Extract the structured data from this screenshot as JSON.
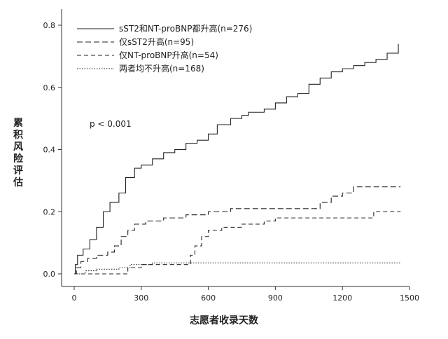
{
  "chart_data": {
    "type": "line",
    "xlabel": "志愿者收录天数",
    "ylabel": "累积风险评估",
    "annotation": "p < 0.001",
    "xlim": [
      0,
      1500
    ],
    "ylim": [
      0,
      0.8
    ],
    "x_ticks": [
      "0",
      "300",
      "600",
      "900",
      "1200",
      "1500"
    ],
    "y_ticks": [
      "0.0",
      "0.2",
      "0.4",
      "0.6",
      "0.8"
    ],
    "grid": false,
    "legend_position": "top-left",
    "series": [
      {
        "name": "sST2和NT-proBNP都升高(n=276)",
        "style": "solid",
        "points": [
          [
            0,
            0
          ],
          [
            5,
            0.03
          ],
          [
            15,
            0.06
          ],
          [
            40,
            0.08
          ],
          [
            70,
            0.11
          ],
          [
            100,
            0.15
          ],
          [
            130,
            0.2
          ],
          [
            160,
            0.23
          ],
          [
            200,
            0.26
          ],
          [
            230,
            0.31
          ],
          [
            270,
            0.34
          ],
          [
            300,
            0.35
          ],
          [
            350,
            0.37
          ],
          [
            400,
            0.39
          ],
          [
            450,
            0.4
          ],
          [
            500,
            0.42
          ],
          [
            550,
            0.43
          ],
          [
            600,
            0.45
          ],
          [
            640,
            0.48
          ],
          [
            700,
            0.5
          ],
          [
            750,
            0.51
          ],
          [
            780,
            0.52
          ],
          [
            850,
            0.53
          ],
          [
            900,
            0.55
          ],
          [
            950,
            0.57
          ],
          [
            1000,
            0.58
          ],
          [
            1050,
            0.61
          ],
          [
            1100,
            0.63
          ],
          [
            1150,
            0.65
          ],
          [
            1200,
            0.66
          ],
          [
            1250,
            0.67
          ],
          [
            1300,
            0.68
          ],
          [
            1350,
            0.69
          ],
          [
            1400,
            0.71
          ],
          [
            1450,
            0.74
          ]
        ]
      },
      {
        "name": "仅sST2升高(n=95)",
        "style": "long-dash",
        "points": [
          [
            0,
            0
          ],
          [
            10,
            0.02
          ],
          [
            30,
            0.04
          ],
          [
            60,
            0.05
          ],
          [
            100,
            0.06
          ],
          [
            150,
            0.07
          ],
          [
            180,
            0.09
          ],
          [
            210,
            0.12
          ],
          [
            240,
            0.14
          ],
          [
            270,
            0.16
          ],
          [
            320,
            0.17
          ],
          [
            400,
            0.18
          ],
          [
            500,
            0.19
          ],
          [
            600,
            0.2
          ],
          [
            700,
            0.21
          ],
          [
            900,
            0.21
          ],
          [
            1100,
            0.23
          ],
          [
            1150,
            0.25
          ],
          [
            1200,
            0.26
          ],
          [
            1250,
            0.28
          ],
          [
            1460,
            0.28
          ]
        ]
      },
      {
        "name": "仅NT-proBNP升高(n=54)",
        "style": "dash",
        "points": [
          [
            0,
            0
          ],
          [
            150,
            0
          ],
          [
            240,
            0.02
          ],
          [
            270,
            0.02
          ],
          [
            300,
            0.03
          ],
          [
            500,
            0.03
          ],
          [
            520,
            0.06
          ],
          [
            540,
            0.09
          ],
          [
            570,
            0.12
          ],
          [
            600,
            0.14
          ],
          [
            660,
            0.15
          ],
          [
            750,
            0.16
          ],
          [
            850,
            0.17
          ],
          [
            900,
            0.18
          ],
          [
            1000,
            0.18
          ],
          [
            1200,
            0.18
          ],
          [
            1340,
            0.2
          ],
          [
            1460,
            0.2
          ]
        ]
      },
      {
        "name": "两者均不升高(n=168)",
        "style": "dot",
        "points": [
          [
            0,
            0
          ],
          [
            50,
            0.01
          ],
          [
            100,
            0.015
          ],
          [
            200,
            0.02
          ],
          [
            250,
            0.03
          ],
          [
            350,
            0.035
          ],
          [
            450,
            0.035
          ],
          [
            1460,
            0.035
          ]
        ]
      }
    ]
  }
}
